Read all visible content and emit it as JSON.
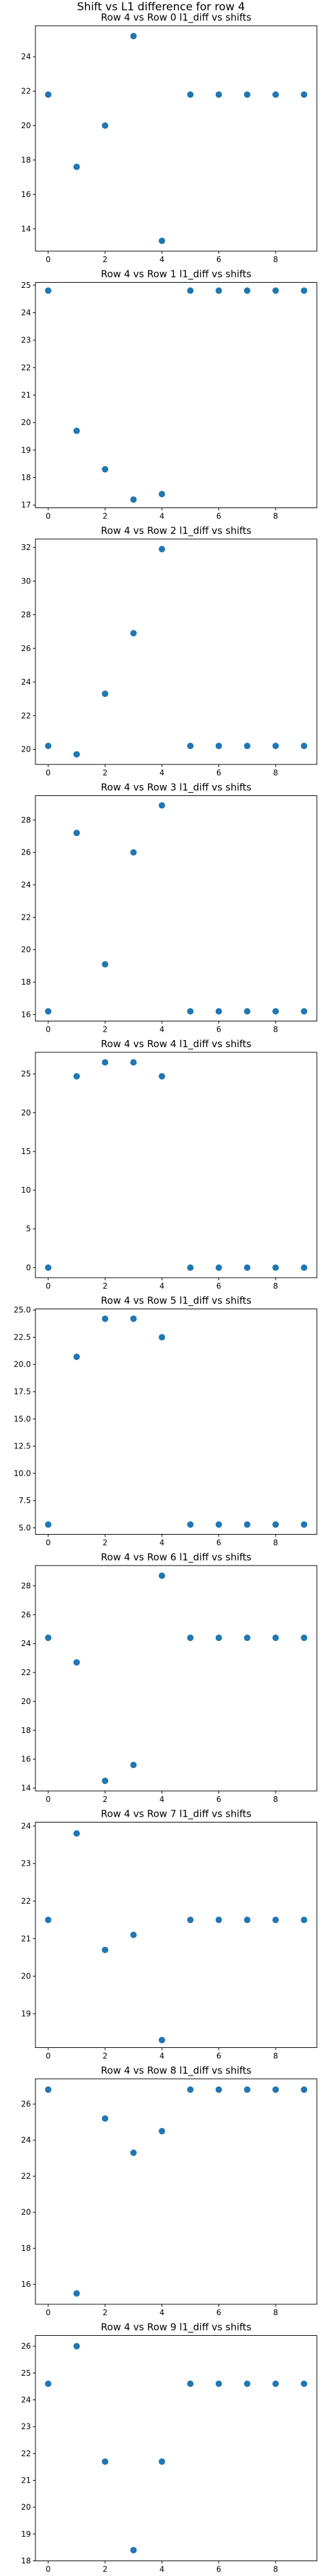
{
  "page_title": "Shift vs L1 difference for row 4",
  "colors": {
    "marker": "#1f77b4",
    "axes": "#000000",
    "background": "#ffffff"
  },
  "chart_data": [
    {
      "type": "scatter",
      "title": "Row 4 vs Row 0 l1_diff vs shifts",
      "x": [
        0,
        1,
        2,
        3,
        4,
        5,
        6,
        7,
        8,
        9
      ],
      "y": [
        21.8,
        17.6,
        20.0,
        25.2,
        13.3,
        21.8,
        21.8,
        21.8,
        21.8,
        21.8
      ],
      "xlim": [
        -0.45,
        9.45
      ],
      "ylim": [
        12.7,
        25.8
      ],
      "xticks": [
        0,
        2,
        4,
        6,
        8
      ],
      "yticks": [
        14,
        16,
        18,
        20,
        22,
        24
      ],
      "grid": false
    },
    {
      "type": "scatter",
      "title": "Row 4 vs Row 1 l1_diff vs shifts",
      "x": [
        0,
        1,
        2,
        3,
        4,
        5,
        6,
        7,
        8,
        9
      ],
      "y": [
        24.8,
        19.7,
        18.3,
        17.2,
        17.4,
        24.8,
        24.8,
        24.8,
        24.8,
        24.8
      ],
      "xlim": [
        -0.45,
        9.45
      ],
      "ylim": [
        16.9,
        25.1
      ],
      "xticks": [
        0,
        2,
        4,
        6,
        8
      ],
      "yticks": [
        17,
        18,
        19,
        20,
        21,
        22,
        23,
        24,
        25
      ],
      "grid": false
    },
    {
      "type": "scatter",
      "title": "Row 4 vs Row 2 l1_diff vs shifts",
      "x": [
        0,
        1,
        2,
        3,
        4,
        5,
        6,
        7,
        8,
        9
      ],
      "y": [
        20.2,
        19.7,
        23.3,
        26.9,
        31.9,
        20.2,
        20.2,
        20.2,
        20.2,
        20.2
      ],
      "xlim": [
        -0.45,
        9.45
      ],
      "ylim": [
        19.1,
        32.5
      ],
      "xticks": [
        0,
        2,
        4,
        6,
        8
      ],
      "yticks": [
        20,
        22,
        24,
        26,
        28,
        30,
        32
      ],
      "grid": false
    },
    {
      "type": "scatter",
      "title": "Row 4 vs Row 3 l1_diff vs shifts",
      "x": [
        0,
        1,
        2,
        3,
        4,
        5,
        6,
        7,
        8,
        9
      ],
      "y": [
        16.2,
        27.2,
        19.1,
        26.0,
        28.9,
        16.2,
        16.2,
        16.2,
        16.2,
        16.2
      ],
      "xlim": [
        -0.45,
        9.45
      ],
      "ylim": [
        15.6,
        29.5
      ],
      "xticks": [
        0,
        2,
        4,
        6,
        8
      ],
      "yticks": [
        16,
        18,
        20,
        22,
        24,
        26,
        28
      ],
      "grid": false
    },
    {
      "type": "scatter",
      "title": "Row 4 vs Row 4 l1_diff vs shifts",
      "x": [
        0,
        1,
        2,
        3,
        4,
        5,
        6,
        7,
        8,
        9
      ],
      "y": [
        0.0,
        24.7,
        26.5,
        26.5,
        24.7,
        0.0,
        0.0,
        0.0,
        0.0,
        0.0
      ],
      "xlim": [
        -0.45,
        9.45
      ],
      "ylim": [
        -1.3,
        27.8
      ],
      "xticks": [
        0,
        2,
        4,
        6,
        8
      ],
      "yticks": [
        0,
        5,
        10,
        15,
        20,
        25
      ],
      "grid": false
    },
    {
      "type": "scatter",
      "title": "Row 4 vs Row 5 l1_diff vs shifts",
      "x": [
        0,
        1,
        2,
        3,
        4,
        5,
        6,
        7,
        8,
        9
      ],
      "y": [
        5.3,
        20.7,
        24.2,
        24.2,
        22.5,
        5.3,
        5.3,
        5.3,
        5.3,
        5.3
      ],
      "xlim": [
        -0.45,
        9.45
      ],
      "ylim": [
        4.4,
        25.1
      ],
      "xticks": [
        0,
        2,
        4,
        6,
        8
      ],
      "yticks": [
        5.0,
        7.5,
        10.0,
        12.5,
        15.0,
        17.5,
        20.0,
        22.5,
        25.0
      ],
      "grid": false
    },
    {
      "type": "scatter",
      "title": "Row 4 vs Row 6 l1_diff vs shifts",
      "x": [
        0,
        1,
        2,
        3,
        4,
        5,
        6,
        7,
        8,
        9
      ],
      "y": [
        24.4,
        22.7,
        14.5,
        15.6,
        28.7,
        24.4,
        24.4,
        24.4,
        24.4,
        24.4
      ],
      "xlim": [
        -0.45,
        9.45
      ],
      "ylim": [
        13.8,
        29.4
      ],
      "xticks": [
        0,
        2,
        4,
        6,
        8
      ],
      "yticks": [
        14,
        16,
        18,
        20,
        22,
        24,
        26,
        28
      ],
      "grid": false
    },
    {
      "type": "scatter",
      "title": "Row 4 vs Row 7 l1_diff vs shifts",
      "x": [
        0,
        1,
        2,
        3,
        4,
        5,
        6,
        7,
        8,
        9
      ],
      "y": [
        21.5,
        23.8,
        20.7,
        21.1,
        18.3,
        21.5,
        21.5,
        21.5,
        21.5,
        21.5
      ],
      "xlim": [
        -0.45,
        9.45
      ],
      "ylim": [
        18.1,
        24.1
      ],
      "xticks": [
        0,
        2,
        4,
        6,
        8
      ],
      "yticks": [
        19,
        20,
        21,
        22,
        23,
        24
      ],
      "grid": false
    },
    {
      "type": "scatter",
      "title": "Row 4 vs Row 8 l1_diff vs shifts",
      "x": [
        0,
        1,
        2,
        3,
        4,
        5,
        6,
        7,
        8,
        9
      ],
      "y": [
        26.8,
        15.5,
        25.2,
        23.3,
        24.5,
        26.8,
        26.8,
        26.8,
        26.8,
        26.8
      ],
      "xlim": [
        -0.45,
        9.45
      ],
      "ylim": [
        14.9,
        27.4
      ],
      "xticks": [
        0,
        2,
        4,
        6,
        8
      ],
      "yticks": [
        16,
        18,
        20,
        22,
        24,
        26
      ],
      "grid": false
    },
    {
      "type": "scatter",
      "title": "Row 4 vs Row 9 l1_diff vs shifts",
      "x": [
        0,
        1,
        2,
        3,
        4,
        5,
        6,
        7,
        8,
        9
      ],
      "y": [
        24.6,
        26.0,
        21.7,
        18.4,
        21.7,
        24.6,
        24.6,
        24.6,
        24.6,
        24.6
      ],
      "xlim": [
        -0.45,
        9.45
      ],
      "ylim": [
        18.0,
        26.4
      ],
      "xticks": [
        0,
        2,
        4,
        6,
        8
      ],
      "yticks": [
        18,
        19,
        20,
        21,
        22,
        23,
        24,
        25,
        26
      ],
      "grid": false
    }
  ]
}
